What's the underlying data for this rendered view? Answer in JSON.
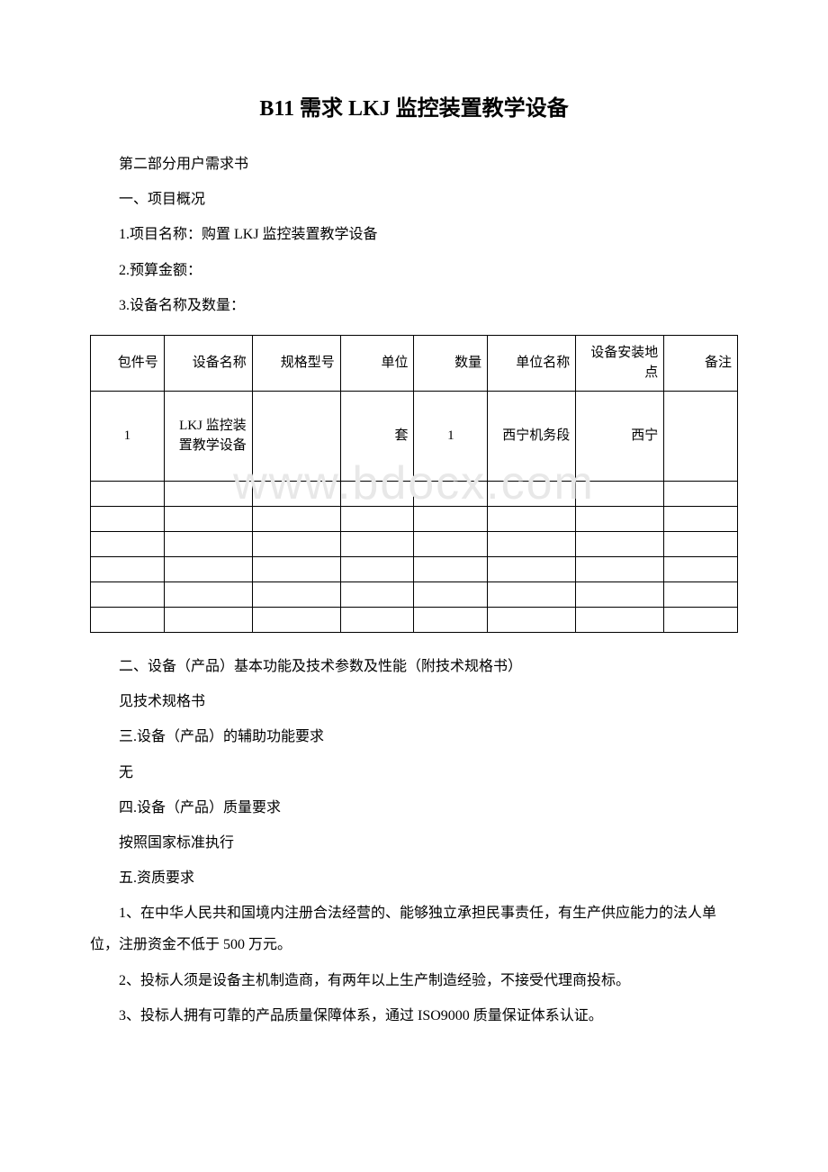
{
  "title": "B11 需求 LKJ 监控装置教学设备",
  "section1": "第二部分用户需求书",
  "heading1": "一、项目概况",
  "item1_1": "1.项目名称：购置 LKJ 监控装置教学设备",
  "item1_2": "2.预算金额：",
  "item1_3": "3.设备名称及数量：",
  "table": {
    "headers": {
      "h1": "包件号",
      "h2": "设备名称",
      "h3": "规格型号",
      "h4": "单位",
      "h5": "数量",
      "h6": "单位名称",
      "h7": "设备安装地点",
      "h8": "备注"
    },
    "row1": {
      "c1": "1",
      "c2": "LKJ 监控装置教学设备",
      "c3": "",
      "c4": "套",
      "c5": "1",
      "c6": "西宁机务段",
      "c7": "西宁",
      "c8": ""
    }
  },
  "watermark": "www.bdocx.com",
  "heading2": "二、设备（产品）基本功能及技术参数及性能（附技术规格书）",
  "text2": "见技术规格书",
  "heading3": "三.设备（产品）的辅助功能要求",
  "text3": "无",
  "heading4": "四.设备（产品）质量要求",
  "text4": "按照国家标准执行",
  "heading5": "五.资质要求",
  "req1": "1、在中华人民共和国境内注册合法经营的、能够独立承担民事责任，有生产供应能力的法人单位，注册资金不低于 500 万元。",
  "req2": "2、投标人须是设备主机制造商，有两年以上生产制造经验，不接受代理商投标。",
  "req3": "3、投标人拥有可靠的产品质量保障体系，通过 ISO9000 质量保证体系认证。"
}
